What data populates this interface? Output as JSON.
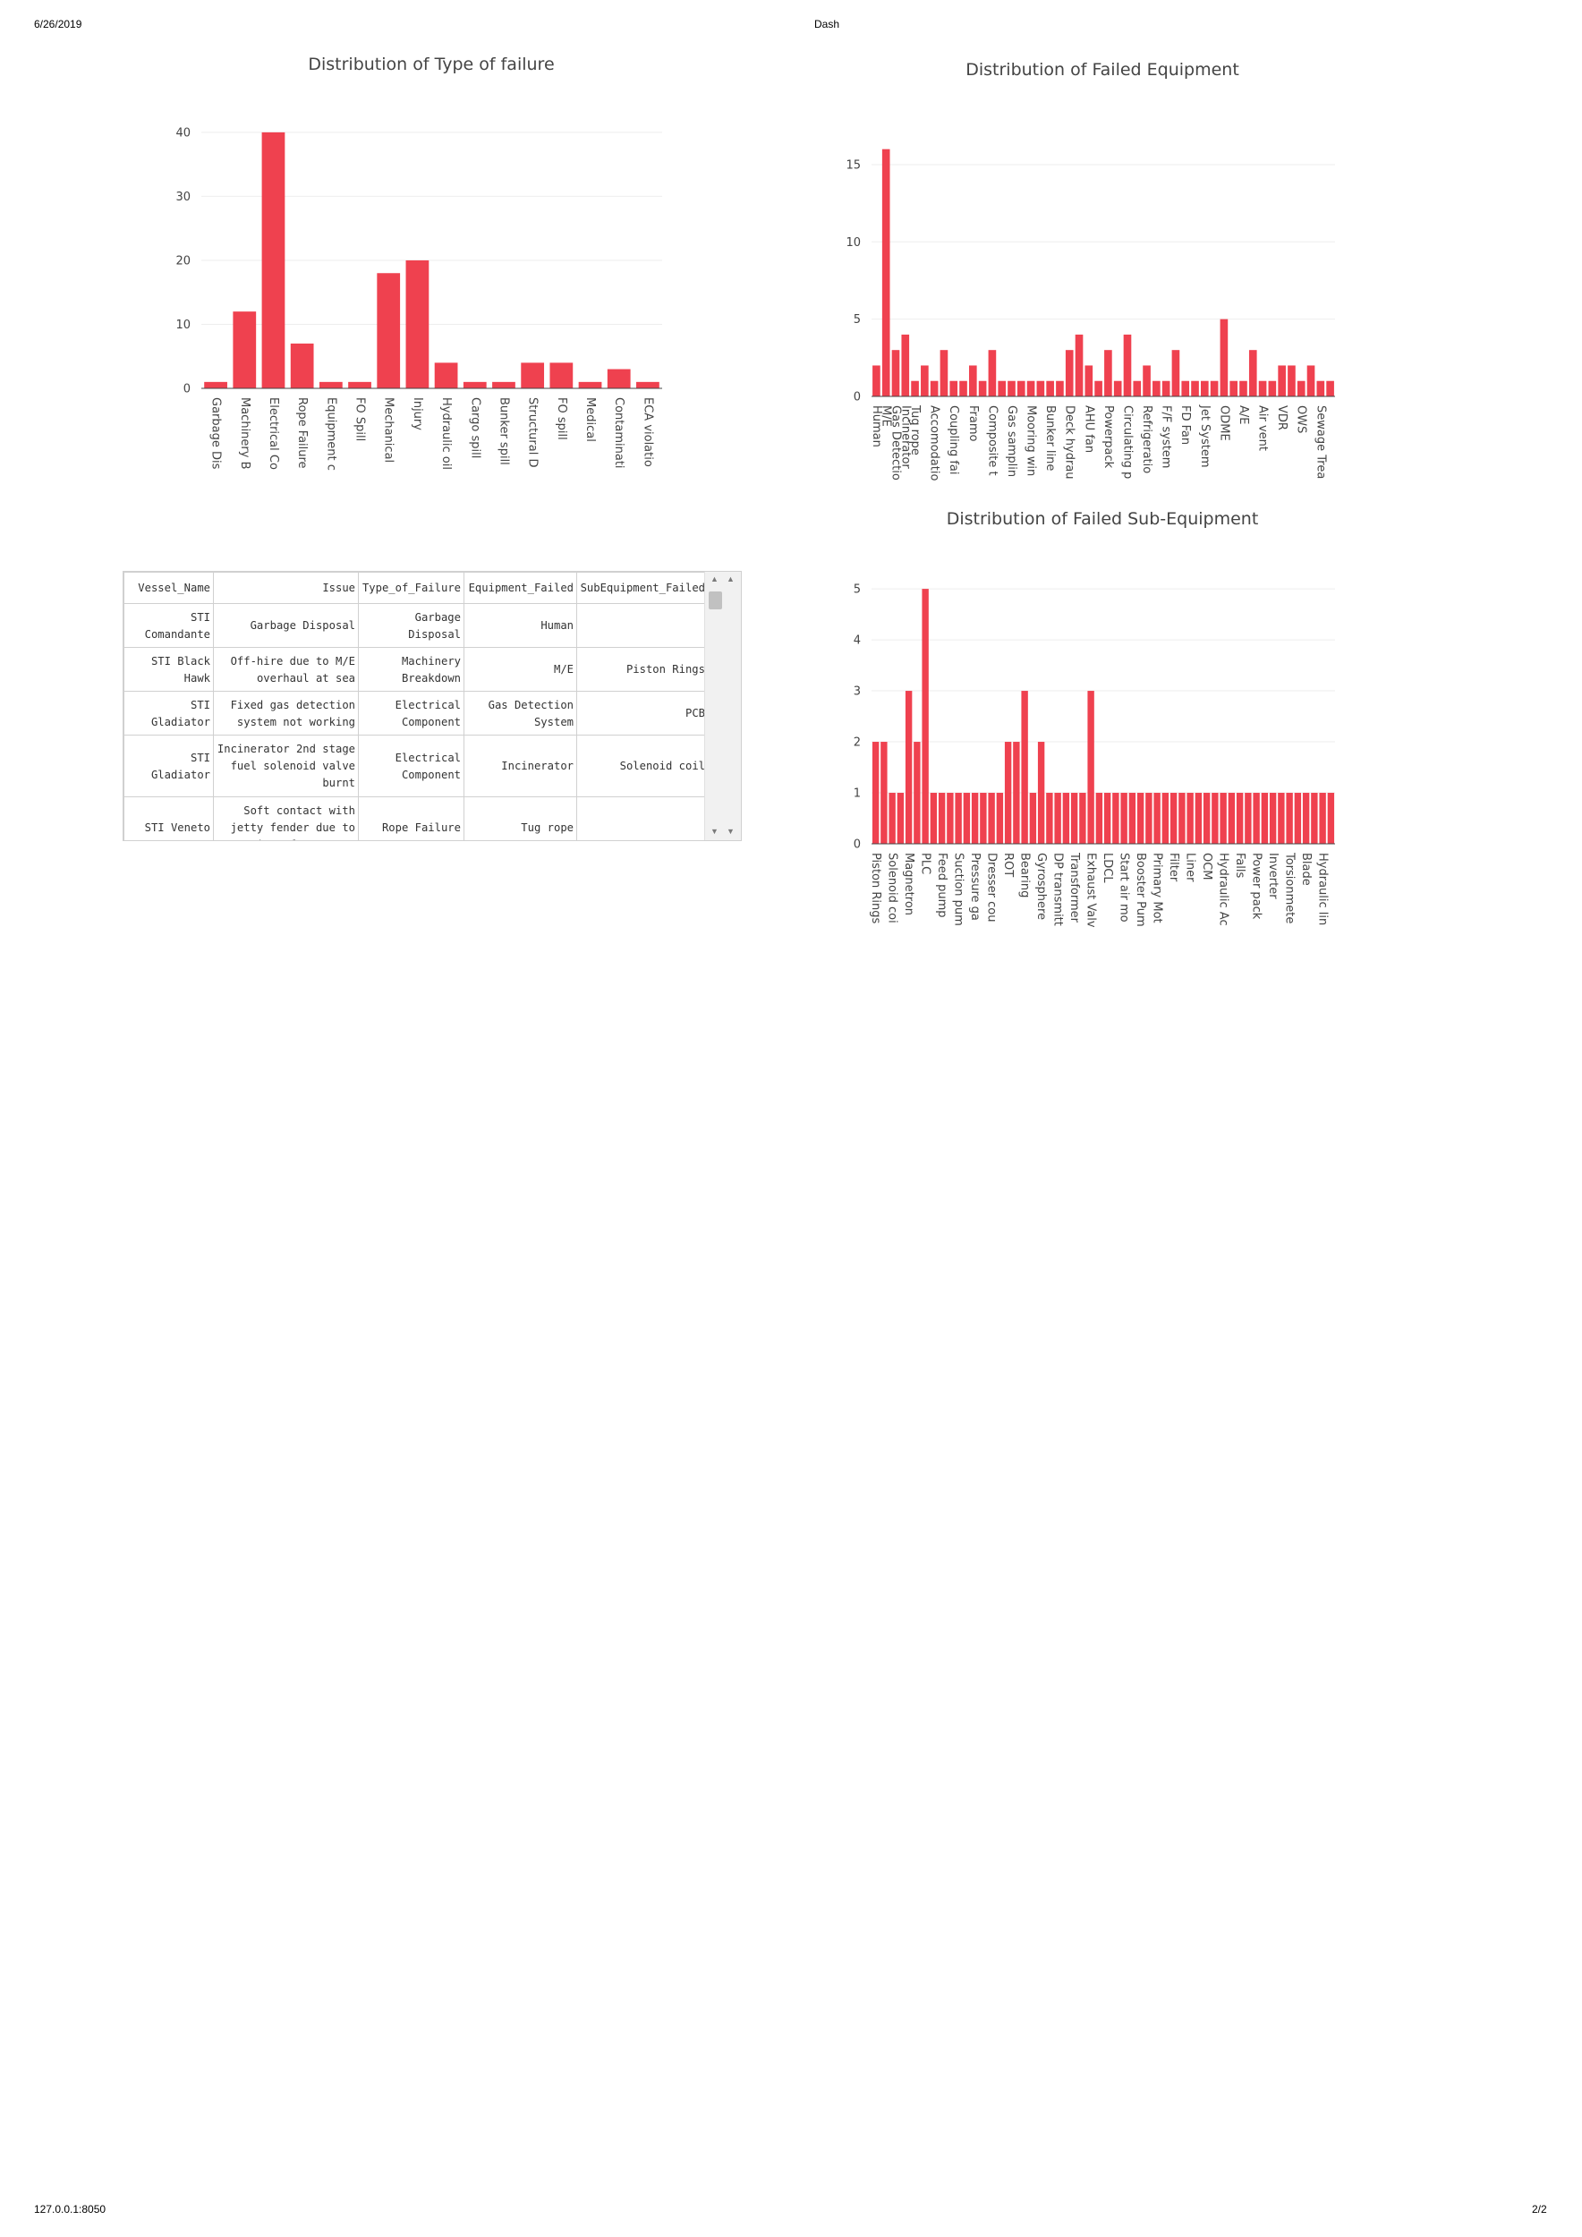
{
  "print_header": {
    "date": "6/26/2019",
    "title": "Dash",
    "url": "127.0.0.1:8050",
    "page": "2/2"
  },
  "colors": {
    "bar": "#ef414f"
  },
  "chart_data": [
    {
      "id": "type_of_failure",
      "type": "bar",
      "title": "Distribution of Type of failure",
      "categories": [
        "Garbage Dis",
        "Machinery B",
        "Electrical Co",
        "Rope Failure",
        "Equipment c",
        "FO Spill",
        "Mechanical",
        "Injury",
        "Hydraulic oil",
        "Cargo spill",
        "Bunker spill",
        "Structural D",
        "FO spill",
        "Medical",
        "Contaminati",
        "ECA violatio"
      ],
      "values": [
        1,
        12,
        40,
        7,
        1,
        1,
        18,
        20,
        4,
        1,
        1,
        4,
        4,
        1,
        3,
        1
      ],
      "yticks": [
        0,
        10,
        20,
        30,
        40
      ],
      "ylim": [
        0,
        42.5
      ],
      "grid": true
    },
    {
      "id": "failed_equipment",
      "type": "bar",
      "title": "Distribution of Failed Equipment",
      "categories": [
        "Human",
        "M/E",
        "Gas Detectio",
        "Incinerator",
        "Tug rope",
        "",
        "Accomodatio",
        "",
        "Coupling fai",
        "",
        "Framo",
        "",
        "Composite t",
        "",
        "Gas samplin",
        "",
        "Mooring win",
        "",
        "Bunker line",
        "",
        "Deck hydrau",
        "",
        "AHU fan",
        "",
        "Powerpack",
        "",
        "Circulating p",
        "",
        "Refrigeratio",
        "",
        "F/F system",
        "",
        "FD Fan",
        "",
        "Jet System",
        "",
        "ODME",
        "",
        "A/E",
        "",
        "Air vent",
        "",
        "VDR",
        "",
        "OWS",
        "",
        "Sewage Trea",
        ""
      ],
      "values": [
        2,
        16,
        3,
        4,
        1,
        2,
        1,
        3,
        1,
        1,
        2,
        1,
        3,
        1,
        1,
        1,
        1,
        1,
        1,
        1,
        3,
        4,
        2,
        1,
        3,
        1,
        4,
        1,
        2,
        1,
        1,
        3,
        1,
        1,
        1,
        1,
        5,
        1,
        1,
        3,
        1,
        1,
        2,
        2,
        1,
        2,
        1,
        1
      ],
      "yticks": [
        0,
        5,
        10,
        15
      ],
      "ylim": [
        0,
        16.85
      ],
      "grid": true
    },
    {
      "id": "failed_subequipment",
      "type": "bar",
      "title": "Distribution of Failed Sub-Equipment",
      "categories": [
        "Piston Rings",
        "",
        "Solenoid coi",
        "",
        "Magnetron",
        "",
        "PLC",
        "",
        "Feed pump",
        "",
        "Suction pum",
        "",
        "Pressure ga",
        "",
        "Dresser cou",
        "",
        "ROT",
        "",
        "Bearing",
        "",
        "Gyrosphere",
        "",
        "DP transmitt",
        "",
        "Transformer",
        "",
        "Exhaust Valv",
        "",
        "LDCL",
        "",
        "Start air mo",
        "",
        "Booster Pum",
        "",
        "Primary Mot",
        "",
        "Filter",
        "",
        "Liner",
        "",
        "OCM",
        "",
        "Hydraulic Ac",
        "",
        "Falls",
        "",
        "Power pack",
        "",
        "Inverter",
        "",
        "Torsionmete",
        "",
        "Blade",
        "",
        "Hydraulic lin",
        ""
      ],
      "values": [
        2,
        2,
        1,
        1,
        3,
        2,
        5,
        1,
        1,
        1,
        1,
        1,
        1,
        1,
        1,
        1,
        2,
        2,
        3,
        1,
        2,
        1,
        1,
        1,
        1,
        1,
        3,
        1,
        1,
        1,
        1,
        1,
        1,
        1,
        1,
        1,
        1,
        1,
        1,
        1,
        1,
        1,
        1,
        1,
        1,
        1,
        1,
        1,
        1,
        1,
        1,
        1,
        1,
        1,
        1,
        1
      ],
      "yticks": [
        0,
        1,
        2,
        3,
        4,
        5
      ],
      "ylim": [
        0,
        5.3
      ],
      "grid": true
    }
  ],
  "table": {
    "columns": [
      "Vessel_Name",
      "Issue",
      "Type_of_Failure",
      "Equipment_Failed",
      "SubEquipment_Failed"
    ],
    "rows": [
      [
        "STI Comandante",
        "Garbage Disposal",
        "Garbage Disposal",
        "Human",
        ""
      ],
      [
        "STI Black Hawk",
        "Off-hire due to M/E overhaul at sea",
        "Machinery Breakdown",
        "M/E",
        "Piston Rings"
      ],
      [
        "STI Gladiator",
        "Fixed gas detection system not working",
        "Electrical Component",
        "Gas Detection System",
        "PCB"
      ],
      [
        "STI Gladiator",
        "Incinerator 2nd stage fuel solenoid valve burnt",
        "Electrical Component",
        "Incinerator",
        "Solenoid coil"
      ],
      [
        "STI Veneto",
        "Soft contact with jetty fender due to parting of tug rope",
        "Rope Failure",
        "Tug rope",
        ""
      ]
    ]
  }
}
